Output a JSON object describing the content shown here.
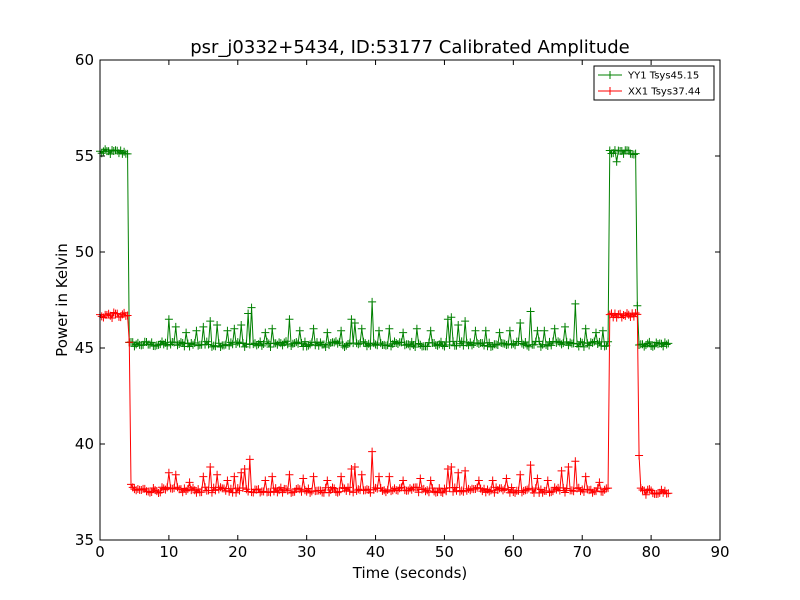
{
  "chart_data": {
    "type": "line",
    "title": "psr_j0332+5434, ID:53177 Calibrated Amplitude",
    "xlabel": "Time (seconds)",
    "ylabel": "Power in Kelvin",
    "xlim": [
      0,
      90
    ],
    "ylim": [
      35,
      60
    ],
    "xticks": [
      "0",
      "10",
      "20",
      "30",
      "40",
      "50",
      "60",
      "70",
      "80",
      "90"
    ],
    "yticks": [
      "35",
      "40",
      "45",
      "50",
      "55",
      "60"
    ],
    "legend_position": "top-right",
    "grid": false,
    "sample_step": 0.25,
    "series": [
      {
        "name": "YY1 Tsys45.15",
        "color": "#008000",
        "marker": "plus",
        "segments": [
          {
            "x_start": 0.0,
            "x_end": 4.0,
            "level": 55.2,
            "noise": 0.15
          },
          {
            "x_start": 4.25,
            "x_end": 73.75,
            "level": 45.2,
            "noise": 0.15
          },
          {
            "x_start": 74.0,
            "x_end": 78.0,
            "level": 55.2,
            "noise": 0.15
          },
          {
            "x_start": 78.25,
            "x_end": 82.5,
            "level": 45.2,
            "noise": 0.15
          }
        ],
        "spikes": [
          {
            "x": 10.0,
            "y": 46.5
          },
          {
            "x": 11.0,
            "y": 46.1
          },
          {
            "x": 12.5,
            "y": 45.8
          },
          {
            "x": 14.0,
            "y": 45.9
          },
          {
            "x": 15.0,
            "y": 46.1
          },
          {
            "x": 16.0,
            "y": 46.4
          },
          {
            "x": 17.0,
            "y": 46.2
          },
          {
            "x": 18.5,
            "y": 45.9
          },
          {
            "x": 19.5,
            "y": 46.0
          },
          {
            "x": 20.5,
            "y": 46.2
          },
          {
            "x": 21.5,
            "y": 46.8
          },
          {
            "x": 22.0,
            "y": 47.1
          },
          {
            "x": 24.0,
            "y": 45.8
          },
          {
            "x": 25.0,
            "y": 46.0
          },
          {
            "x": 27.5,
            "y": 46.5
          },
          {
            "x": 29.0,
            "y": 45.9
          },
          {
            "x": 31.0,
            "y": 46.0
          },
          {
            "x": 33.0,
            "y": 45.8
          },
          {
            "x": 35.0,
            "y": 45.9
          },
          {
            "x": 36.5,
            "y": 46.5
          },
          {
            "x": 37.0,
            "y": 46.3
          },
          {
            "x": 38.0,
            "y": 46.0
          },
          {
            "x": 39.5,
            "y": 47.4
          },
          {
            "x": 40.5,
            "y": 45.9
          },
          {
            "x": 42.0,
            "y": 46.0
          },
          {
            "x": 44.0,
            "y": 45.8
          },
          {
            "x": 46.0,
            "y": 46.0
          },
          {
            "x": 48.0,
            "y": 45.9
          },
          {
            "x": 50.5,
            "y": 46.5
          },
          {
            "x": 51.0,
            "y": 46.6
          },
          {
            "x": 52.0,
            "y": 46.2
          },
          {
            "x": 53.0,
            "y": 46.4
          },
          {
            "x": 54.5,
            "y": 45.9
          },
          {
            "x": 56.0,
            "y": 45.9
          },
          {
            "x": 58.0,
            "y": 45.8
          },
          {
            "x": 59.5,
            "y": 45.9
          },
          {
            "x": 61.0,
            "y": 46.3
          },
          {
            "x": 62.5,
            "y": 46.9
          },
          {
            "x": 63.5,
            "y": 45.9
          },
          {
            "x": 64.5,
            "y": 45.9
          },
          {
            "x": 66.0,
            "y": 46.0
          },
          {
            "x": 67.5,
            "y": 46.1
          },
          {
            "x": 69.0,
            "y": 47.3
          },
          {
            "x": 70.5,
            "y": 46.0
          },
          {
            "x": 72.0,
            "y": 45.8
          },
          {
            "x": 73.0,
            "y": 45.9
          },
          {
            "x": 75.0,
            "y": 54.7
          },
          {
            "x": 78.0,
            "y": 47.2
          }
        ]
      },
      {
        "name": "XX1 Tsys37.44",
        "color": "#ff0000",
        "marker": "plus",
        "segments": [
          {
            "x_start": 0.0,
            "x_end": 4.0,
            "level": 46.7,
            "noise": 0.15
          },
          {
            "x_start": 4.25,
            "x_end": 73.75,
            "level": 37.6,
            "noise": 0.15
          },
          {
            "x_start": 74.0,
            "x_end": 78.0,
            "level": 46.7,
            "noise": 0.15
          },
          {
            "x_start": 78.25,
            "x_end": 82.5,
            "level": 37.5,
            "noise": 0.15
          }
        ],
        "spikes": [
          {
            "x": 4.25,
            "y": 45.3
          },
          {
            "x": 4.5,
            "y": 37.9
          },
          {
            "x": 10.0,
            "y": 38.5
          },
          {
            "x": 11.0,
            "y": 38.4
          },
          {
            "x": 13.0,
            "y": 38.0
          },
          {
            "x": 15.0,
            "y": 38.3
          },
          {
            "x": 16.0,
            "y": 38.8
          },
          {
            "x": 17.0,
            "y": 38.4
          },
          {
            "x": 18.5,
            "y": 38.1
          },
          {
            "x": 19.5,
            "y": 38.3
          },
          {
            "x": 20.5,
            "y": 38.5
          },
          {
            "x": 21.0,
            "y": 38.7
          },
          {
            "x": 21.8,
            "y": 39.2
          },
          {
            "x": 24.0,
            "y": 38.1
          },
          {
            "x": 25.0,
            "y": 38.3
          },
          {
            "x": 27.5,
            "y": 38.4
          },
          {
            "x": 29.5,
            "y": 38.2
          },
          {
            "x": 31.0,
            "y": 38.3
          },
          {
            "x": 33.0,
            "y": 38.1
          },
          {
            "x": 35.0,
            "y": 38.3
          },
          {
            "x": 36.5,
            "y": 38.7
          },
          {
            "x": 37.0,
            "y": 38.8
          },
          {
            "x": 38.0,
            "y": 38.4
          },
          {
            "x": 39.5,
            "y": 39.6
          },
          {
            "x": 40.5,
            "y": 38.3
          },
          {
            "x": 42.0,
            "y": 38.3
          },
          {
            "x": 44.0,
            "y": 38.1
          },
          {
            "x": 46.5,
            "y": 38.2
          },
          {
            "x": 48.0,
            "y": 38.1
          },
          {
            "x": 50.5,
            "y": 38.7
          },
          {
            "x": 51.0,
            "y": 38.8
          },
          {
            "x": 52.0,
            "y": 38.5
          },
          {
            "x": 53.0,
            "y": 38.6
          },
          {
            "x": 55.0,
            "y": 38.1
          },
          {
            "x": 57.0,
            "y": 38.1
          },
          {
            "x": 59.0,
            "y": 38.2
          },
          {
            "x": 61.0,
            "y": 38.4
          },
          {
            "x": 62.5,
            "y": 38.9
          },
          {
            "x": 63.5,
            "y": 38.2
          },
          {
            "x": 65.0,
            "y": 38.1
          },
          {
            "x": 67.0,
            "y": 38.6
          },
          {
            "x": 68.0,
            "y": 38.8
          },
          {
            "x": 69.0,
            "y": 39.1
          },
          {
            "x": 70.5,
            "y": 38.3
          },
          {
            "x": 72.5,
            "y": 38.0
          },
          {
            "x": 78.25,
            "y": 39.4
          },
          {
            "x": 78.5,
            "y": 37.7
          }
        ]
      }
    ]
  }
}
